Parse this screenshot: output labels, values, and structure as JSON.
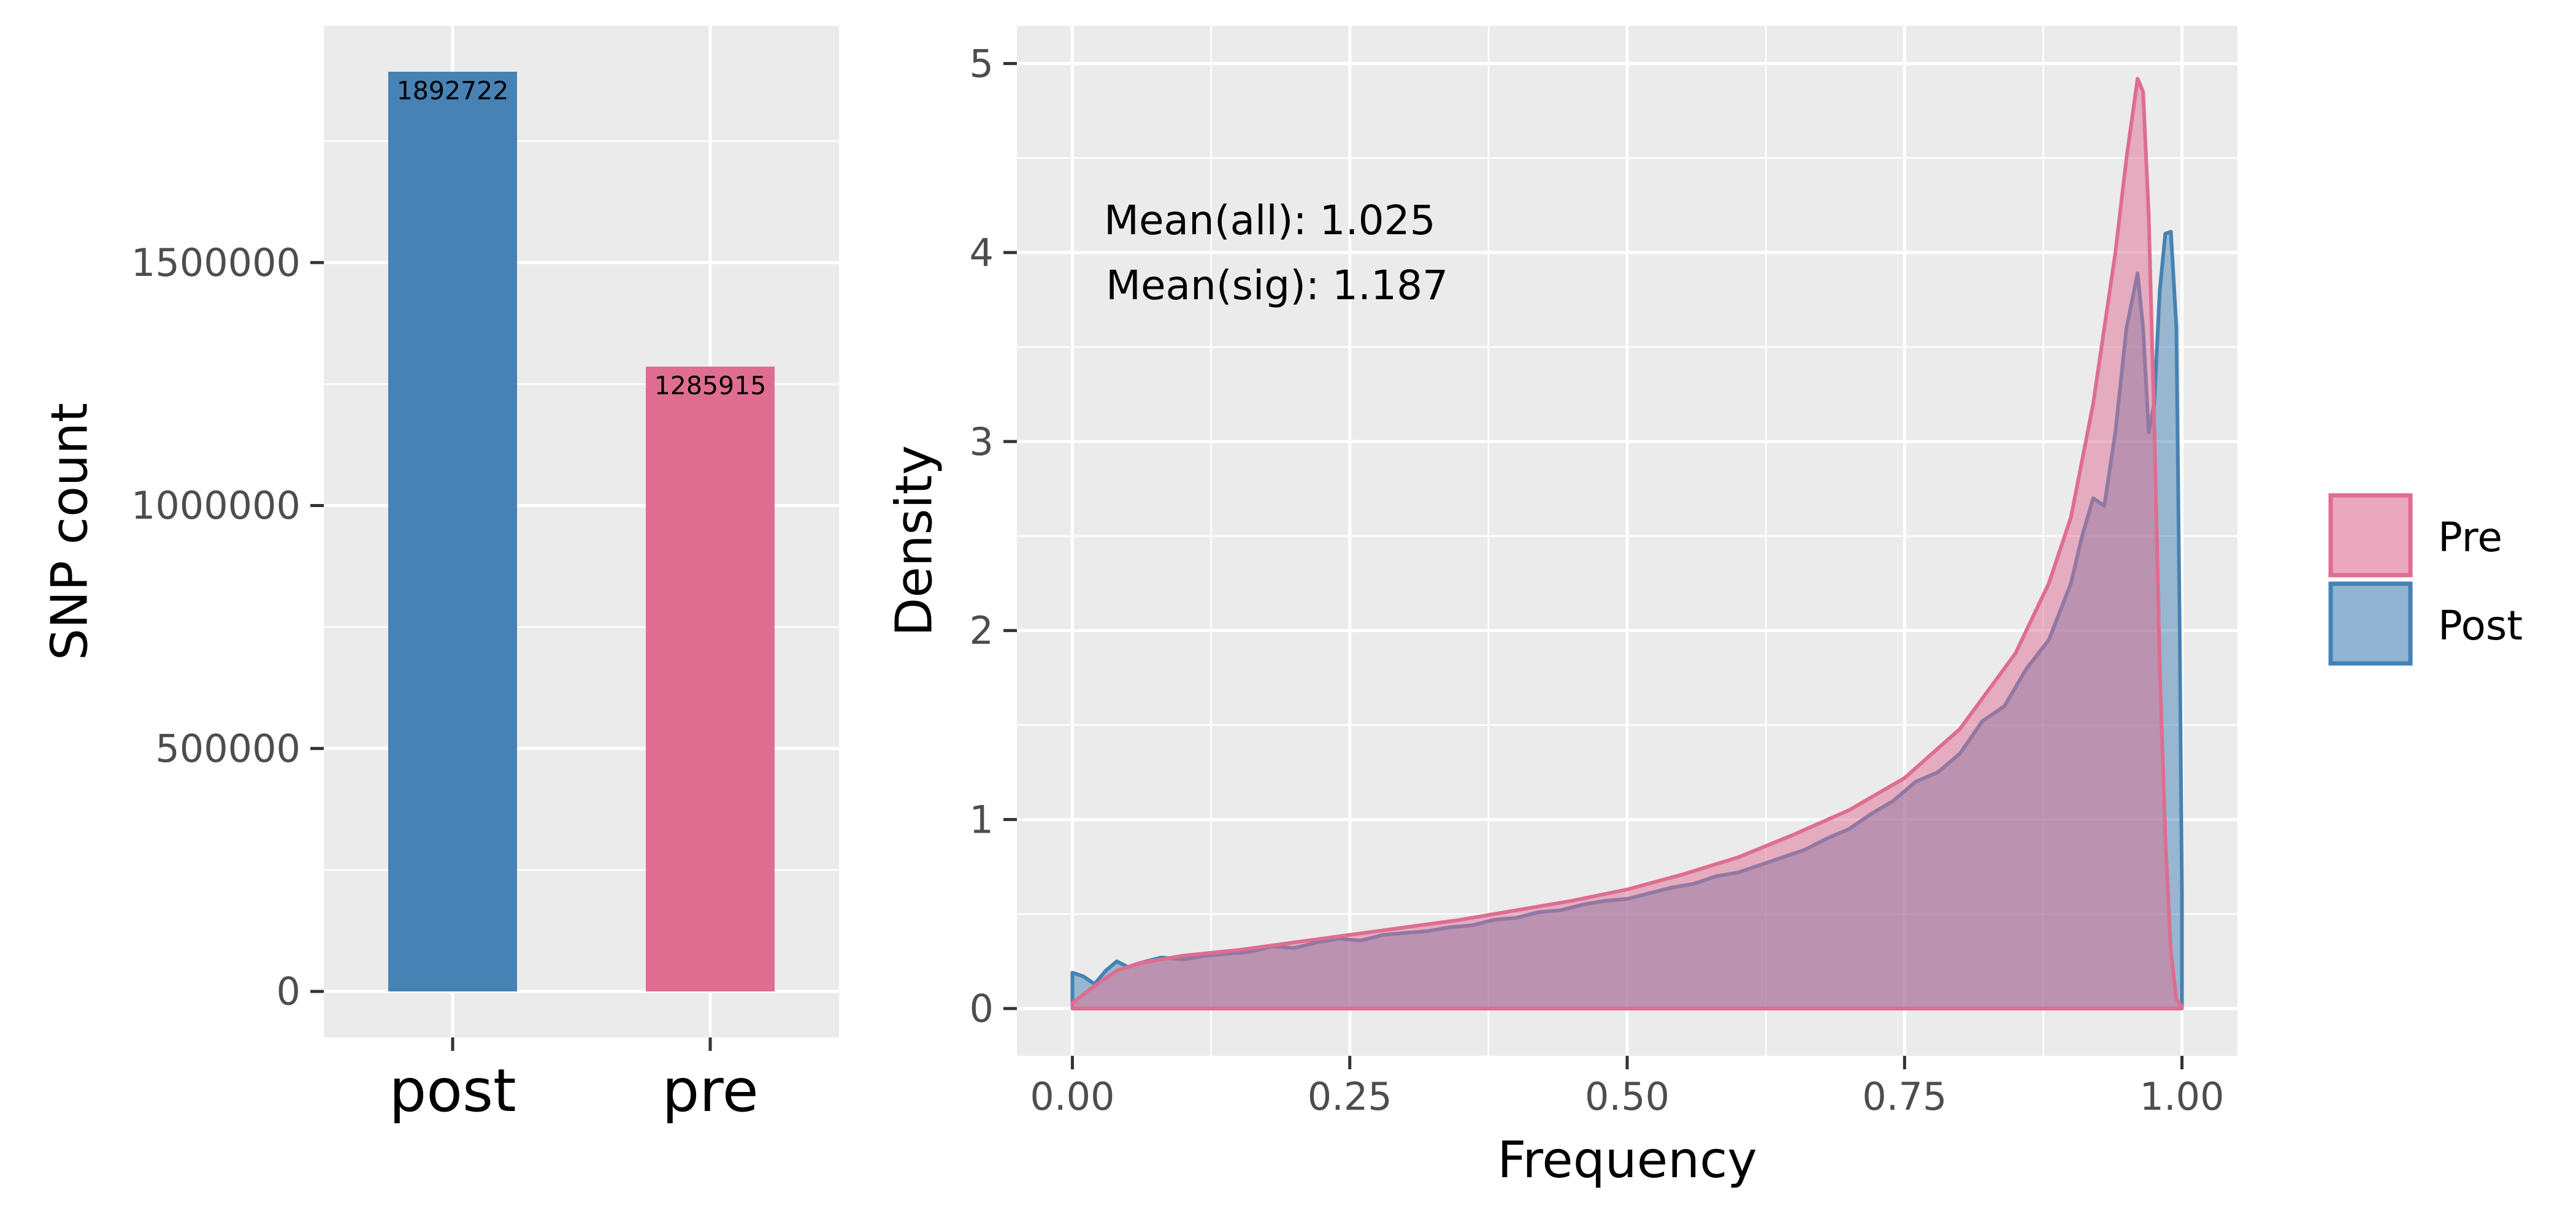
{
  "chart_data": [
    {
      "type": "bar",
      "categories": [
        "post",
        "pre"
      ],
      "values": [
        1892722,
        1285915
      ],
      "data_labels": [
        "1892722",
        "1285915"
      ],
      "colors": [
        "#4682b4",
        "#de6d91"
      ],
      "xlabel": "",
      "ylabel": "SNP count",
      "ylim": [
        -94636,
        1987358
      ],
      "yticks": [
        0,
        500000,
        1000000,
        1500000
      ],
      "ytick_labels": [
        "0",
        "500000",
        "1000000",
        "1500000"
      ],
      "grid": true,
      "panel_background": "#ebebeb"
    },
    {
      "type": "area",
      "xlabel": "Frequency",
      "ylabel": "Density",
      "xlim": [
        -0.05,
        1.05
      ],
      "ylim": [
        -0.25,
        5.2
      ],
      "xticks": [
        0,
        0.25,
        0.5,
        0.75,
        1.0
      ],
      "xtick_labels": [
        "0.00",
        "0.25",
        "0.50",
        "0.75",
        "1.00"
      ],
      "yticks": [
        0,
        1,
        2,
        3,
        4,
        5
      ],
      "ytick_labels": [
        "0",
        "1",
        "2",
        "3",
        "4",
        "5"
      ],
      "grid": true,
      "panel_background": "#ebebeb",
      "annotations": [
        "Mean(all): 1.025",
        "Mean(sig): 1.187"
      ],
      "legend": {
        "position": "right",
        "entries": [
          "Pre",
          "Post"
        ]
      },
      "series": [
        {
          "name": "Post",
          "fill": "#4682b4",
          "stroke": "#4682b4",
          "x": [
            0,
            0.005,
            0.01,
            0.02,
            0.03,
            0.04,
            0.05,
            0.06,
            0.08,
            0.1,
            0.12,
            0.14,
            0.16,
            0.18,
            0.2,
            0.22,
            0.24,
            0.26,
            0.28,
            0.3,
            0.32,
            0.34,
            0.36,
            0.38,
            0.4,
            0.42,
            0.44,
            0.46,
            0.48,
            0.5,
            0.52,
            0.54,
            0.56,
            0.58,
            0.6,
            0.62,
            0.64,
            0.66,
            0.68,
            0.7,
            0.72,
            0.74,
            0.76,
            0.78,
            0.8,
            0.82,
            0.84,
            0.86,
            0.88,
            0.9,
            0.91,
            0.92,
            0.93,
            0.94,
            0.95,
            0.96,
            0.965,
            0.97,
            0.975,
            0.98,
            0.985,
            0.99,
            0.995,
            0.998,
            1.0,
            1.0
          ],
          "y": [
            0.19,
            0.18,
            0.17,
            0.13,
            0.2,
            0.25,
            0.22,
            0.24,
            0.27,
            0.26,
            0.28,
            0.29,
            0.3,
            0.33,
            0.32,
            0.35,
            0.37,
            0.36,
            0.39,
            0.4,
            0.41,
            0.43,
            0.44,
            0.47,
            0.48,
            0.51,
            0.52,
            0.55,
            0.57,
            0.58,
            0.61,
            0.64,
            0.66,
            0.7,
            0.72,
            0.76,
            0.8,
            0.84,
            0.9,
            0.95,
            1.03,
            1.1,
            1.2,
            1.25,
            1.35,
            1.52,
            1.6,
            1.8,
            1.95,
            2.25,
            2.5,
            2.7,
            2.66,
            3.05,
            3.6,
            3.89,
            3.6,
            3.05,
            3.2,
            3.8,
            4.1,
            4.11,
            3.6,
            2.0,
            0.6,
            0
          ]
        },
        {
          "name": "Pre",
          "fill": "#de6d91",
          "stroke": "#de6d91",
          "x": [
            0,
            0.02,
            0.04,
            0.06,
            0.08,
            0.1,
            0.15,
            0.2,
            0.25,
            0.3,
            0.35,
            0.4,
            0.45,
            0.5,
            0.55,
            0.6,
            0.65,
            0.7,
            0.75,
            0.8,
            0.85,
            0.88,
            0.9,
            0.92,
            0.94,
            0.95,
            0.96,
            0.965,
            0.97,
            0.975,
            0.98,
            0.985,
            0.99,
            0.995,
            1.0,
            1.0
          ],
          "y": [
            0.03,
            0.12,
            0.2,
            0.24,
            0.26,
            0.28,
            0.31,
            0.35,
            0.39,
            0.43,
            0.47,
            0.52,
            0.57,
            0.63,
            0.71,
            0.8,
            0.92,
            1.05,
            1.22,
            1.48,
            1.88,
            2.25,
            2.6,
            3.2,
            4.0,
            4.5,
            4.92,
            4.85,
            4.2,
            3.1,
            1.8,
            0.9,
            0.3,
            0.05,
            0.01,
            0
          ]
        }
      ]
    }
  ]
}
